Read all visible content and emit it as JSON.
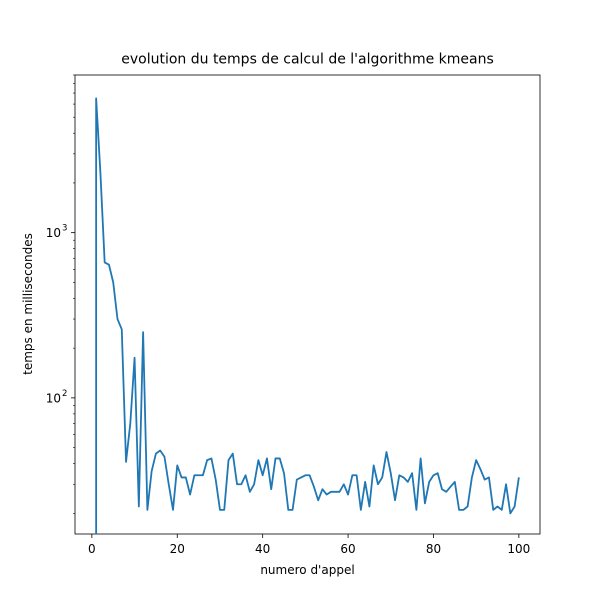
{
  "chart_data": {
    "type": "line",
    "title": "evolution du temps de calcul de l'algorithme kmeans",
    "xlabel": "numero d'appel",
    "ylabel": "temps en millisecondes",
    "yscale": "log",
    "xlim": [
      -3.95,
      104.95
    ],
    "ylim": [
      15,
      9000
    ],
    "grid": false,
    "x_ticks": [
      0,
      20,
      40,
      60,
      80,
      100
    ],
    "y_major_ticks": [
      100,
      1000
    ],
    "y_major_tick_labels": [
      [
        "10",
        "2"
      ],
      [
        "10",
        "3"
      ]
    ],
    "y_minor_ticks": [
      20,
      30,
      40,
      50,
      60,
      70,
      80,
      90,
      200,
      300,
      400,
      500,
      600,
      700,
      800,
      900,
      2000,
      3000,
      4000,
      5000,
      6000,
      7000,
      8000,
      9000
    ],
    "series": [
      {
        "color": "#1f77b4",
        "x": [
          1,
          2,
          3,
          4,
          5,
          6,
          7,
          8,
          9,
          10,
          11,
          12,
          13,
          14,
          15,
          16,
          17,
          18,
          19,
          20,
          21,
          22,
          23,
          24,
          25,
          26,
          27,
          28,
          29,
          30,
          31,
          32,
          33,
          34,
          35,
          36,
          37,
          38,
          39,
          40,
          41,
          42,
          43,
          44,
          45,
          46,
          47,
          48,
          49,
          50,
          51,
          52,
          53,
          54,
          55,
          56,
          57,
          58,
          59,
          60,
          61,
          62,
          63,
          64,
          65,
          66,
          67,
          68,
          69,
          70,
          71,
          72,
          73,
          74,
          75,
          76,
          77,
          78,
          79,
          80,
          81,
          82,
          83,
          84,
          85,
          86,
          87,
          88,
          89,
          90,
          91,
          92,
          93,
          94,
          95,
          96,
          97,
          98,
          99,
          100
        ],
        "y": [
          6500,
          2300,
          660,
          640,
          500,
          300,
          260,
          41,
          70,
          175,
          22,
          250,
          21,
          36,
          46,
          48,
          44,
          30,
          21,
          39,
          33,
          33,
          26,
          34,
          34,
          34,
          42,
          43,
          32,
          21,
          21,
          42,
          46,
          30,
          30,
          34,
          27,
          30,
          42,
          34,
          43,
          28,
          43,
          43,
          35,
          21,
          21,
          32,
          33,
          34,
          34,
          29,
          24,
          28,
          26,
          27,
          27,
          27,
          30,
          26,
          34,
          34,
          21,
          31,
          22,
          39,
          30,
          33,
          47,
          35,
          24,
          34,
          33,
          31,
          35,
          21,
          43,
          23,
          31,
          34,
          35,
          28,
          27,
          29,
          31,
          21,
          21,
          22,
          33,
          42,
          37,
          32,
          33,
          21,
          22,
          21,
          30,
          20,
          22,
          33
        ]
      }
    ]
  }
}
